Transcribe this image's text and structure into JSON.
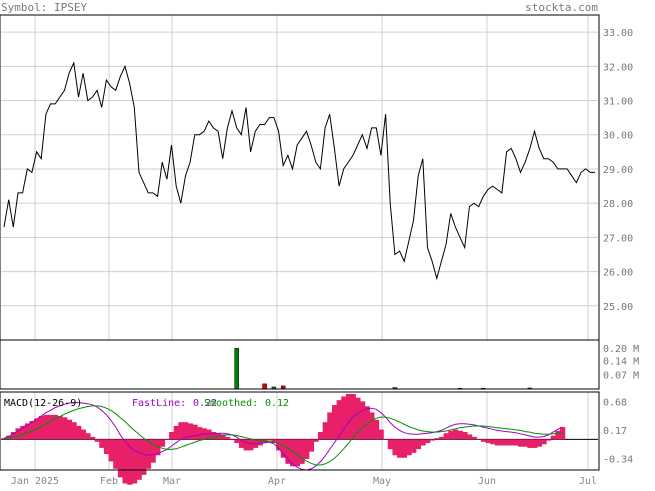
{
  "header": {
    "symbol_label": "Symbol: IPSEY",
    "site": "stockta.com"
  },
  "x_axis": {
    "months": [
      "Jan 2025",
      "Feb",
      "Mar",
      "Apr",
      "May",
      "Jun",
      "Jul"
    ]
  },
  "chart_data": [
    {
      "type": "line",
      "panel": "price",
      "ylim": [
        24.0,
        33.5
      ],
      "grid": true,
      "yticks": [
        25,
        26,
        27,
        28,
        29,
        30,
        31,
        32,
        33
      ],
      "ytick_labels": [
        "25.00",
        "26.00",
        "27.00",
        "28.00",
        "29.00",
        "30.00",
        "31.00",
        "32.00",
        "33.00"
      ],
      "series": [
        {
          "color": "#000000",
          "x": [
            0,
            1,
            2,
            3,
            4,
            5,
            6,
            7,
            8,
            9,
            10,
            11,
            12,
            13,
            14,
            15,
            16,
            17,
            18,
            19,
            20,
            21,
            22,
            23,
            24,
            25,
            26,
            27,
            28,
            29,
            30,
            31,
            32,
            33,
            34,
            35,
            36,
            37,
            38,
            39,
            40,
            41,
            42,
            43,
            44,
            45,
            46,
            47,
            48,
            49,
            50,
            51,
            52,
            53,
            54,
            55,
            56,
            57,
            58,
            59,
            60,
            61,
            62,
            63,
            64,
            65,
            66,
            67,
            68,
            69,
            70,
            71,
            72,
            73,
            74,
            75,
            76,
            77,
            78,
            79,
            80,
            81,
            82,
            83,
            84,
            85,
            86,
            87,
            88,
            89,
            90,
            91,
            92,
            93,
            94,
            95,
            96,
            97,
            98,
            99,
            100,
            101,
            102,
            103,
            104,
            105,
            106,
            107,
            108,
            109,
            110,
            111,
            112,
            113,
            114,
            115,
            116,
            117,
            118,
            119,
            120,
            121,
            122,
            123,
            124,
            125,
            126,
            127
          ],
          "values": [
            27.3,
            28.1,
            27.3,
            28.3,
            28.3,
            29.0,
            28.9,
            29.5,
            29.3,
            30.6,
            30.9,
            30.9,
            31.1,
            31.3,
            31.8,
            32.1,
            31.1,
            31.8,
            31.0,
            31.1,
            31.3,
            30.8,
            31.6,
            31.4,
            31.3,
            31.7,
            32.0,
            31.5,
            30.8,
            28.9,
            28.6,
            28.3,
            28.3,
            28.2,
            29.2,
            28.7,
            29.7,
            28.5,
            28.0,
            28.8,
            29.2,
            30.0,
            30.0,
            30.1,
            30.4,
            30.2,
            30.1,
            29.3,
            30.2,
            30.7,
            30.2,
            30.0,
            30.8,
            29.5,
            30.1,
            30.3,
            30.3,
            30.5,
            30.5,
            30.1,
            29.1,
            29.4,
            29.0,
            29.7,
            29.9,
            30.1,
            29.7,
            29.2,
            29.0,
            30.2,
            30.6,
            29.6,
            28.5,
            29.0,
            29.2,
            29.4,
            29.7,
            30.0,
            29.6,
            30.2,
            30.2,
            29.4,
            30.6,
            28.0,
            26.5,
            26.6,
            26.3,
            26.9,
            27.5,
            28.8,
            29.3,
            26.7,
            26.3,
            25.8,
            26.3,
            26.8,
            27.7,
            27.3,
            27.0,
            26.7,
            27.9,
            28.0,
            27.9,
            28.2,
            28.4,
            28.5,
            28.4,
            28.3,
            29.5,
            29.6,
            29.3,
            28.9,
            29.2,
            29.6,
            30.1,
            29.6,
            29.3,
            29.3,
            29.2,
            29.0,
            29.0,
            29.0,
            28.8,
            28.6,
            28.9,
            29.0,
            28.9,
            28.9
          ]
        }
      ]
    },
    {
      "type": "bar",
      "panel": "volume",
      "ylim": [
        0,
        0.24
      ],
      "yticks": [
        0.07,
        0.14,
        0.2
      ],
      "ytick_labels": [
        "0.07 M",
        "0.14 M",
        "0.20 M"
      ],
      "bars": [
        {
          "x": 50,
          "value": 0.2,
          "color": "#008000"
        },
        {
          "x": 56,
          "value": 0.025,
          "color": "#e00000"
        },
        {
          "x": 58,
          "value": 0.01,
          "color": "#008000"
        },
        {
          "x": 60,
          "value": 0.015,
          "color": "#e00000"
        },
        {
          "x": 84,
          "value": 0.007,
          "color": "#e00000"
        },
        {
          "x": 98,
          "value": 0.004,
          "color": "#e00000"
        },
        {
          "x": 103,
          "value": 0.004,
          "color": "#e00000"
        },
        {
          "x": 113,
          "value": 0.005,
          "color": "#e00000"
        }
      ]
    },
    {
      "type": "line",
      "panel": "macd",
      "label": "MACD(12-26-9)",
      "fastline_label": "FastLine:",
      "fastline_value": "0.22",
      "smoothed_label": "Smoothed:",
      "smoothed_value": "0.12",
      "ylim": [
        -0.55,
        0.85
      ],
      "yticks": [
        -0.34,
        0.17,
        0.68
      ],
      "ytick_labels": [
        "-0.34",
        "0.17",
        "0.68"
      ],
      "series": [
        {
          "name": "FastLine",
          "color": "#a000c8",
          "values": [
            0.02,
            0.05,
            0.1,
            0.15,
            0.2,
            0.25,
            0.3,
            0.36,
            0.42,
            0.48,
            0.52,
            0.57,
            0.6,
            0.63,
            0.65,
            0.66,
            0.66,
            0.65,
            0.64,
            0.62,
            0.58,
            0.52,
            0.44,
            0.34,
            0.22,
            0.08,
            -0.04,
            -0.13,
            -0.2,
            -0.24,
            -0.27,
            -0.28,
            -0.28,
            -0.26,
            -0.22,
            -0.18,
            -0.12,
            -0.06,
            0.0,
            0.03,
            0.05,
            0.07,
            0.08,
            0.09,
            0.1,
            0.1,
            0.11,
            0.11,
            0.1,
            0.08,
            0.04,
            -0.02,
            -0.06,
            -0.08,
            -0.08,
            -0.07,
            -0.06,
            -0.05,
            -0.08,
            -0.16,
            -0.26,
            -0.36,
            -0.44,
            -0.5,
            -0.54,
            -0.55,
            -0.53,
            -0.48,
            -0.4,
            -0.3,
            -0.18,
            -0.06,
            0.06,
            0.18,
            0.3,
            0.4,
            0.46,
            0.52,
            0.55,
            0.56,
            0.54,
            0.48,
            0.4,
            0.3,
            0.22,
            0.16,
            0.12,
            0.1,
            0.09,
            0.09,
            0.1,
            0.11,
            0.12,
            0.14,
            0.16,
            0.2,
            0.24,
            0.27,
            0.28,
            0.28,
            0.27,
            0.26,
            0.24,
            0.22,
            0.2,
            0.18,
            0.16,
            0.15,
            0.14,
            0.13,
            0.12,
            0.1,
            0.08,
            0.06,
            0.04,
            0.04,
            0.05,
            0.08,
            0.13,
            0.18,
            0.22
          ]
        },
        {
          "name": "Smoothed",
          "color": "#009000",
          "values": [
            0.01,
            0.02,
            0.04,
            0.06,
            0.09,
            0.12,
            0.15,
            0.19,
            0.23,
            0.28,
            0.32,
            0.37,
            0.41,
            0.45,
            0.49,
            0.52,
            0.55,
            0.57,
            0.59,
            0.6,
            0.6,
            0.59,
            0.56,
            0.52,
            0.46,
            0.39,
            0.32,
            0.24,
            0.16,
            0.09,
            0.02,
            -0.04,
            -0.09,
            -0.13,
            -0.16,
            -0.18,
            -0.18,
            -0.17,
            -0.14,
            -0.11,
            -0.08,
            -0.05,
            -0.02,
            0.0,
            0.02,
            0.04,
            0.06,
            0.07,
            0.08,
            0.08,
            0.07,
            0.05,
            0.03,
            0.01,
            -0.01,
            -0.02,
            -0.03,
            -0.04,
            -0.05,
            -0.07,
            -0.11,
            -0.16,
            -0.22,
            -0.28,
            -0.34,
            -0.39,
            -0.43,
            -0.46,
            -0.46,
            -0.44,
            -0.4,
            -0.34,
            -0.26,
            -0.17,
            -0.07,
            0.03,
            0.12,
            0.21,
            0.28,
            0.34,
            0.38,
            0.4,
            0.4,
            0.38,
            0.35,
            0.31,
            0.27,
            0.23,
            0.2,
            0.17,
            0.15,
            0.14,
            0.13,
            0.13,
            0.14,
            0.15,
            0.17,
            0.19,
            0.21,
            0.22,
            0.23,
            0.24,
            0.24,
            0.24,
            0.23,
            0.22,
            0.21,
            0.2,
            0.19,
            0.18,
            0.17,
            0.16,
            0.14,
            0.13,
            0.11,
            0.1,
            0.09,
            0.09,
            0.1,
            0.11,
            0.12
          ]
        }
      ],
      "histogram_color": "#e8206a"
    }
  ],
  "colors": {
    "axis": "#000000",
    "grid": "#cccccc",
    "fastline_text": "#a000c8",
    "smoothed_text": "#009000"
  }
}
